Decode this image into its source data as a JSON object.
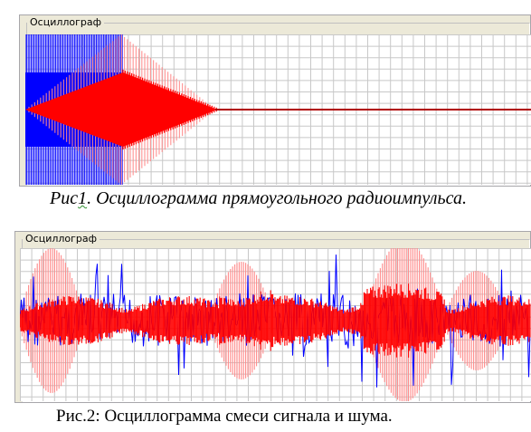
{
  "oscilloscope_1": {
    "title": "Осциллограф",
    "trace_colors": {
      "primary": "#ff0000",
      "secondary": "#0000ff",
      "light": "#ff8a8a"
    },
    "grid_color": "#c8c8c8"
  },
  "oscilloscope_2": {
    "title": "Осциллограф",
    "trace_colors": {
      "signal": "#ff0000",
      "noise": "#0000ff",
      "light": "#ff8a8a"
    },
    "grid_color": "#c8c8c8"
  },
  "caption_1": {
    "prefix": "Рис",
    "number": "1",
    "rest": ". Осциллограмма прямоугольного радиоимпульса."
  },
  "caption_2": {
    "text": "Рис.2: Осциллограмма смеси сигнала и шума."
  }
}
